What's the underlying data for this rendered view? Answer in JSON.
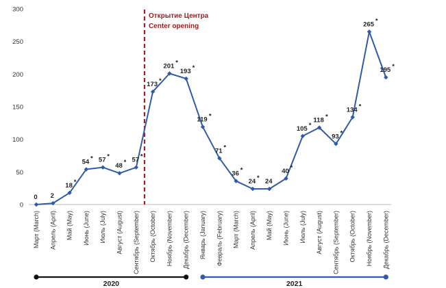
{
  "chart_data": {
    "type": "line",
    "categories": [
      "Март (March)",
      "Апрель (April)",
      "Май (May)",
      "Июнь (June)",
      "Июль (July)",
      "Август (August)",
      "Сентябрь (September)",
      "Октябрь (October)",
      "Ноябрь (November)",
      "Декабрь (December)",
      "Январь (January)",
      "Февраль (February)",
      "Март (March)",
      "Апрель (April)",
      "Май (May)",
      "Июнь (June)",
      "Июль (July)",
      "Август (August)",
      "Сентябрь (September)",
      "Октябрь (October)",
      "Ноябрь (November)",
      "Декабрь (December)"
    ],
    "values": [
      0,
      2,
      18,
      54,
      57,
      48,
      57,
      173,
      201,
      193,
      119,
      71,
      36,
      24,
      24,
      40,
      105,
      118,
      93,
      134,
      265,
      195
    ],
    "data_labels": [
      "0",
      "2",
      "18",
      "54",
      "57",
      "48",
      "57",
      "173",
      "201",
      "193",
      "119",
      "71",
      "36",
      "24",
      "24",
      "40",
      "105",
      "118",
      "93",
      "134",
      "265",
      "195"
    ],
    "asterisk": [
      false,
      false,
      true,
      true,
      true,
      true,
      true,
      true,
      true,
      true,
      true,
      true,
      true,
      true,
      false,
      true,
      true,
      true,
      true,
      true,
      true,
      true
    ],
    "ylim": [
      0,
      300
    ],
    "yticks": [
      0,
      50,
      100,
      150,
      200,
      250,
      300
    ],
    "grid": false,
    "series_color": "#2e5aa8",
    "annotation": {
      "position_category_index": 6.5,
      "line1": "Открытие Центра",
      "line2": "Center opening",
      "color": "#a01e1e"
    },
    "year_groups": [
      {
        "label": "2020",
        "from": 0,
        "to": 9,
        "color": "#111111"
      },
      {
        "label": "2021",
        "from": 10,
        "to": 21,
        "color": "#2e5aa8"
      }
    ]
  }
}
